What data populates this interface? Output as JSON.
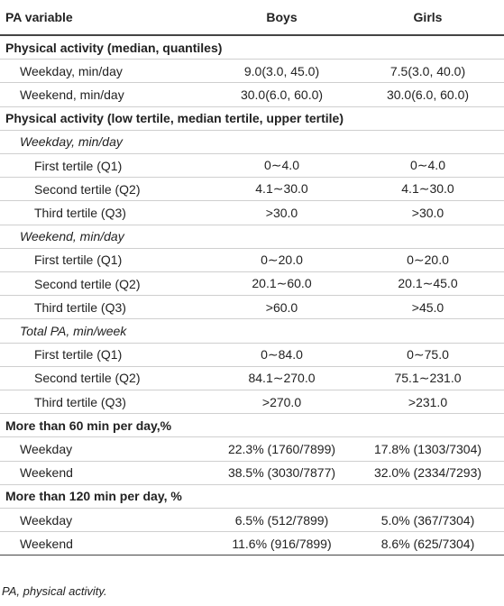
{
  "table": {
    "header": [
      "PA variable",
      "Boys",
      "Girls"
    ],
    "rows": [
      [
        "Physical activity (median, quantiles)"
      ],
      [
        "Weekday, min/day",
        "9.0(3.0, 45.0)",
        "7.5(3.0, 40.0)"
      ],
      [
        "Weekend, min/day",
        "30.0(6.0, 60.0)",
        "30.0(6.0, 60.0)"
      ],
      [
        "Physical activity (low tertile, median tertile, upper tertile)"
      ],
      [
        "Weekday, min/day"
      ],
      [
        "First tertile (Q1)",
        "0∼4.0",
        "0∼4.0"
      ],
      [
        "Second tertile (Q2)",
        "4.1∼30.0",
        "4.1∼30.0"
      ],
      [
        "Third tertile (Q3)",
        ">30.0",
        ">30.0"
      ],
      [
        "Weekend, min/day"
      ],
      [
        "First tertile (Q1)",
        "0∼20.0",
        "0∼20.0"
      ],
      [
        "Second tertile (Q2)",
        "20.1∼60.0",
        "20.1∼45.0"
      ],
      [
        "Third tertile (Q3)",
        ">60.0",
        ">45.0"
      ],
      [
        "Total PA, min/week"
      ],
      [
        "First tertile (Q1)",
        "0∼84.0",
        "0∼75.0"
      ],
      [
        "Second tertile (Q2)",
        "84.1∼270.0",
        "75.1∼231.0"
      ],
      [
        "Third tertile (Q3)",
        ">270.0",
        ">231.0"
      ],
      [
        "More than 60 min per day,%"
      ],
      [
        "Weekday",
        "22.3% (1760/7899)",
        "17.8% (1303/7304)"
      ],
      [
        "Weekend",
        "38.5% (3030/7877)",
        "32.0% (2334/7293)"
      ],
      [
        "More than 120 min per day, %"
      ],
      [
        "Weekday",
        "6.5% (512/7899)",
        "5.0% (367/7304)"
      ],
      [
        "Weekend",
        "11.6% (916/7899)",
        "8.6% (625/7304)"
      ]
    ]
  },
  "footnote": "PA, physical activity."
}
